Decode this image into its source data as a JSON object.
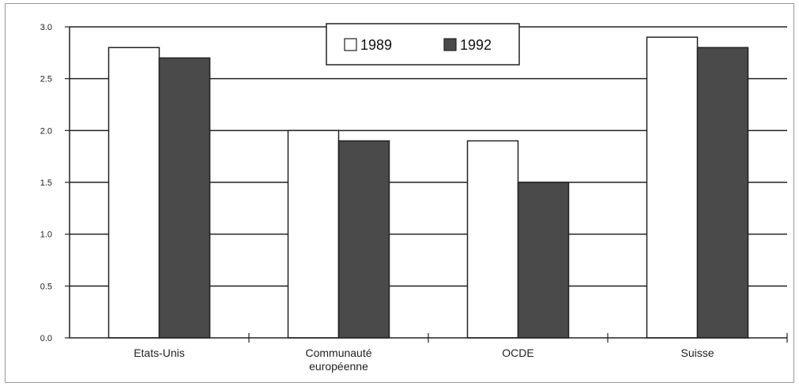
{
  "chart_data": {
    "type": "bar",
    "categories": [
      "Etats-Unis",
      "Communauté\neuropéenne",
      "OCDE",
      "Suisse"
    ],
    "series": [
      {
        "name": "1989",
        "values": [
          2.8,
          2.0,
          1.9,
          2.9
        ],
        "color": "#ffffff"
      },
      {
        "name": "1992",
        "values": [
          2.7,
          1.9,
          1.5,
          2.8
        ],
        "color": "#4a4a4a"
      }
    ],
    "ylim": [
      0,
      3
    ],
    "yticks": [
      "0.0",
      "0.5",
      "1.0",
      "1.5",
      "2.0",
      "2.5",
      "3.0"
    ],
    "grid": true,
    "legend_position": "top-center",
    "title": "",
    "xlabel": "",
    "ylabel": ""
  }
}
